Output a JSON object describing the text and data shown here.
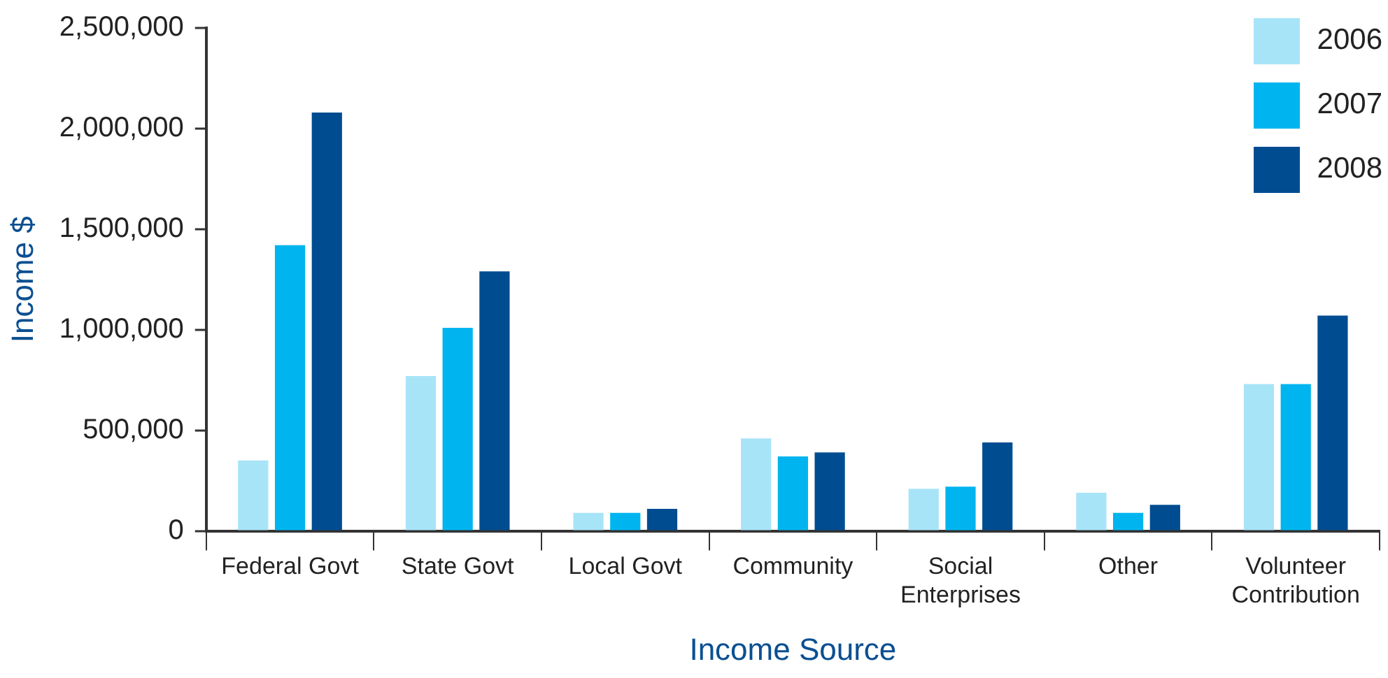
{
  "chart_data": {
    "type": "bar",
    "xlabel": "Income Source",
    "ylabel": "Income $",
    "categories": [
      "Federal Govt",
      "State Govt",
      "Local Govt",
      "Community",
      "Social Enterprises",
      "Other",
      "Volunteer Contribution"
    ],
    "series": [
      {
        "name": "2006",
        "color": "#a8e4f8",
        "values": [
          350000,
          770000,
          90000,
          460000,
          210000,
          190000,
          730000
        ]
      },
      {
        "name": "2007",
        "color": "#00b5ef",
        "values": [
          1420000,
          1010000,
          90000,
          370000,
          220000,
          90000,
          730000
        ]
      },
      {
        "name": "2008",
        "color": "#004c91",
        "values": [
          2080000,
          1290000,
          110000,
          390000,
          440000,
          130000,
          1070000
        ]
      }
    ],
    "ylim": [
      0,
      2500000
    ],
    "yticks": [
      0,
      {
        "value": 500000,
        "label": "500,000"
      },
      {
        "value": 1000000,
        "label": "1,000,000"
      },
      {
        "value": 1500000,
        "label": "1,500,000"
      },
      {
        "value": 2000000,
        "label": "2,000,000"
      },
      {
        "value": 2500000,
        "label": "2,500,000"
      }
    ],
    "grid": false,
    "legend": "top right"
  }
}
